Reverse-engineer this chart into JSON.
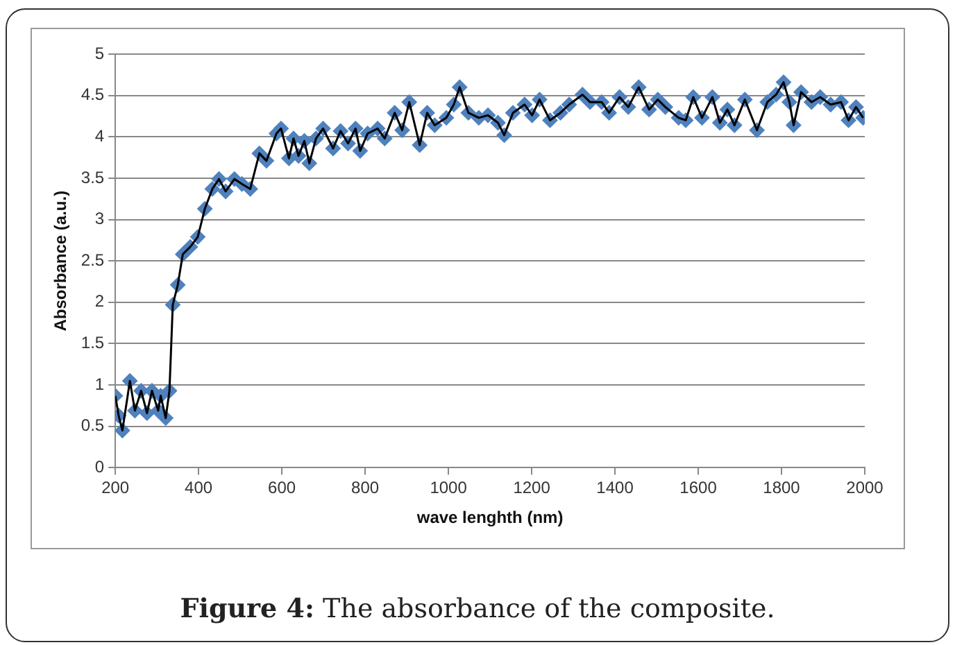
{
  "chart_data": {
    "type": "line",
    "xlabel": "wave lenghth (nm)",
    "ylabel": "Absorbance (a.u.)",
    "annotations": [
      "Figure 4: The absorbance of the composite."
    ],
    "x": [
      200,
      208,
      217,
      235,
      247,
      262,
      276,
      288,
      303,
      309,
      321,
      330,
      338,
      350,
      362,
      380,
      398,
      415,
      433,
      449,
      465,
      486,
      504,
      524,
      546,
      563,
      587,
      598,
      617,
      628,
      640,
      654,
      666,
      682,
      699,
      723,
      741,
      759,
      777,
      788,
      806,
      830,
      847,
      871,
      889,
      906,
      931,
      949,
      967,
      995,
      1013,
      1027,
      1048,
      1073,
      1095,
      1119,
      1134,
      1155,
      1183,
      1201,
      1219,
      1244,
      1269,
      1290,
      1322,
      1340,
      1368,
      1386,
      1411,
      1432,
      1457,
      1482,
      1503,
      1521,
      1553,
      1570,
      1588,
      1609,
      1634,
      1652,
      1670,
      1687,
      1712,
      1741,
      1766,
      1787,
      1805,
      1819,
      1829,
      1847,
      1872,
      1893,
      1918,
      1943,
      1961,
      1979,
      1996
    ],
    "series": [
      {
        "type": "scatter",
        "color": "#4f81bd",
        "marker": "diamond",
        "values": [
          0.87,
          0.63,
          0.45,
          1.05,
          0.69,
          0.93,
          0.66,
          0.93,
          0.69,
          0.87,
          0.6,
          0.93,
          1.97,
          2.21,
          2.58,
          2.67,
          2.79,
          3.13,
          3.37,
          3.49,
          3.34,
          3.49,
          3.43,
          3.37,
          3.8,
          3.71,
          4.04,
          4.1,
          3.74,
          3.98,
          3.77,
          3.95,
          3.68,
          3.98,
          4.1,
          3.86,
          4.07,
          3.92,
          4.1,
          3.83,
          4.04,
          4.1,
          3.98,
          4.29,
          4.08,
          4.42,
          3.9,
          4.29,
          4.14,
          4.23,
          4.39,
          4.6,
          4.29,
          4.23,
          4.26,
          4.17,
          4.02,
          4.29,
          4.39,
          4.26,
          4.45,
          4.2,
          4.29,
          4.39,
          4.51,
          4.42,
          4.42,
          4.29,
          4.48,
          4.36,
          4.6,
          4.33,
          4.45,
          4.36,
          4.23,
          4.2,
          4.48,
          4.23,
          4.48,
          4.17,
          4.33,
          4.14,
          4.45,
          4.08,
          4.42,
          4.51,
          4.66,
          4.42,
          4.14,
          4.54,
          4.42,
          4.48,
          4.39,
          4.42,
          4.2,
          4.36,
          4.23
        ]
      },
      {
        "type": "line",
        "color": "#000000",
        "marker": "none",
        "line_style": "solid",
        "values": [
          0.87,
          0.63,
          0.45,
          1.05,
          0.69,
          0.93,
          0.66,
          0.93,
          0.69,
          0.87,
          0.6,
          0.93,
          1.97,
          2.21,
          2.58,
          2.67,
          2.79,
          3.13,
          3.37,
          3.49,
          3.34,
          3.49,
          3.43,
          3.37,
          3.8,
          3.71,
          4.04,
          4.1,
          3.74,
          3.98,
          3.77,
          3.95,
          3.68,
          3.98,
          4.1,
          3.86,
          4.07,
          3.92,
          4.1,
          3.83,
          4.04,
          4.1,
          3.98,
          4.29,
          4.08,
          4.42,
          3.9,
          4.29,
          4.14,
          4.23,
          4.39,
          4.6,
          4.29,
          4.23,
          4.26,
          4.17,
          4.02,
          4.29,
          4.39,
          4.26,
          4.45,
          4.2,
          4.29,
          4.39,
          4.51,
          4.42,
          4.42,
          4.29,
          4.48,
          4.36,
          4.6,
          4.33,
          4.45,
          4.36,
          4.23,
          4.2,
          4.48,
          4.23,
          4.48,
          4.17,
          4.33,
          4.14,
          4.45,
          4.08,
          4.42,
          4.51,
          4.66,
          4.42,
          4.14,
          4.54,
          4.42,
          4.48,
          4.39,
          4.42,
          4.2,
          4.36,
          4.23
        ]
      }
    ],
    "xlim": [
      200,
      2000
    ],
    "xticks": [
      200,
      400,
      600,
      800,
      1000,
      1200,
      1400,
      1600,
      1800,
      2000
    ],
    "ylim": [
      0,
      5
    ],
    "yticks": [
      0,
      0.5,
      1,
      1.5,
      2,
      2.5,
      3,
      3.5,
      4,
      4.5,
      5
    ],
    "grid": "y"
  }
}
